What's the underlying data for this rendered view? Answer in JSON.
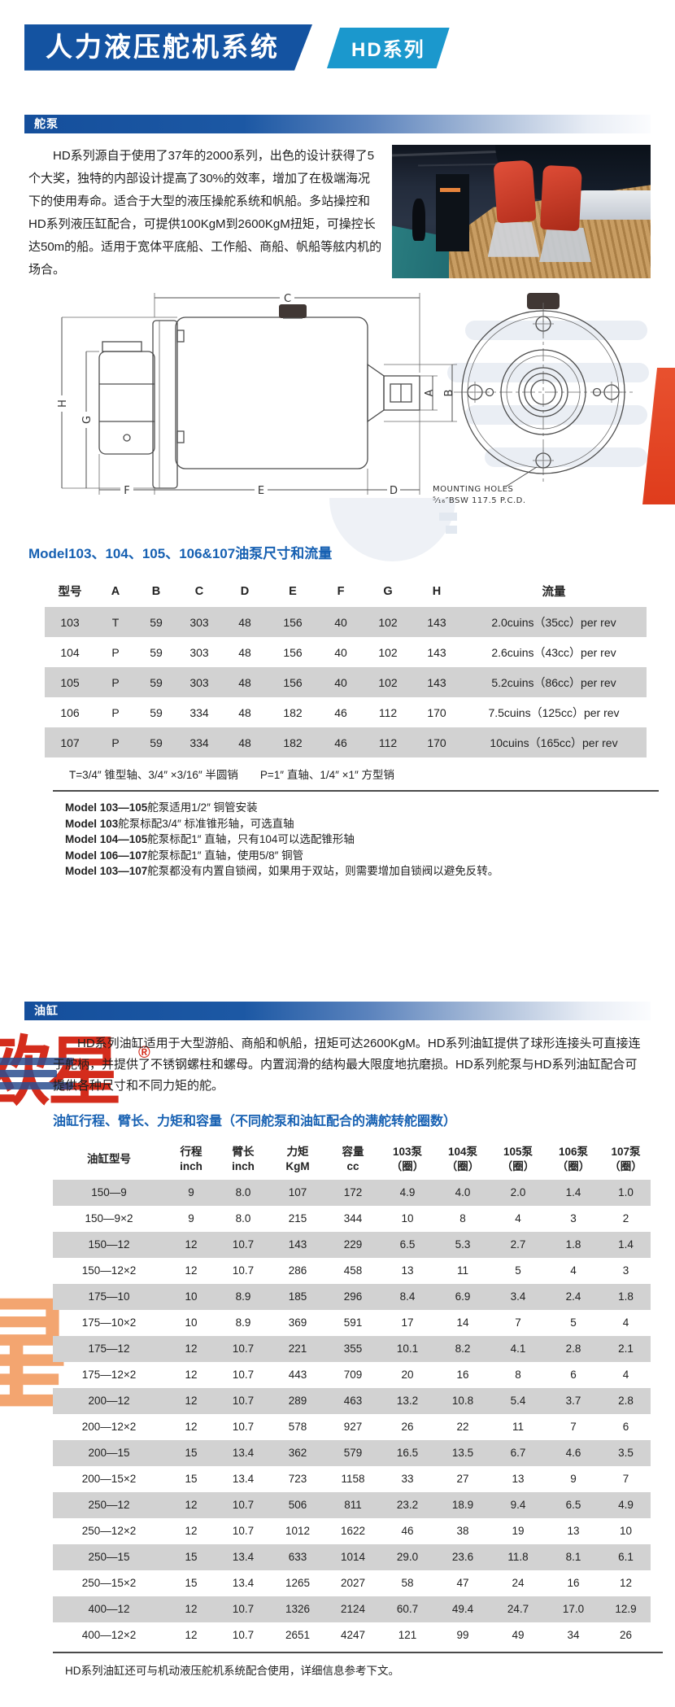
{
  "header": {
    "title": "人力液压舵机系统",
    "badge": "HD系列"
  },
  "pump_section": {
    "heading": "舵泵",
    "description": "HD系列源自于使用了37年的2000系列，出色的设计获得了5个大奖，独特的内部设计提高了30%的效率，增加了在极端海况下的使用寿命。适合于大型的液压操舵系统和帆船。多站操控和HD系列液压缸配合，可提供100KgM到2600KgM扭矩，可操控长达50m的船。适用于宽体平底船、工作船、商船、帆船等舷内机的场合。",
    "drawing": {
      "dim_c": "C",
      "dim_h": "H",
      "dim_g": "G",
      "dim_a": "A",
      "dim_b": "B",
      "dim_f": "F",
      "dim_e": "E",
      "dim_d": "D",
      "mounting_line1": "MOUNTING  HOLES",
      "mounting_line2": "⁵⁄₁₆″BSW  117.5  P.C.D."
    },
    "table_title": "Model103、104、105、106&107油泵尺寸和流量",
    "table": {
      "headers": [
        "型号",
        "A",
        "B",
        "C",
        "D",
        "E",
        "F",
        "G",
        "H",
        "流量"
      ],
      "rows": [
        [
          "103",
          "T",
          "59",
          "303",
          "48",
          "156",
          "40",
          "102",
          "143",
          "2.0cuins（35cc）per rev"
        ],
        [
          "104",
          "P",
          "59",
          "303",
          "48",
          "156",
          "40",
          "102",
          "143",
          "2.6cuins（43cc）per rev"
        ],
        [
          "105",
          "P",
          "59",
          "303",
          "48",
          "156",
          "40",
          "102",
          "143",
          "5.2cuins（86cc）per rev"
        ],
        [
          "106",
          "P",
          "59",
          "334",
          "48",
          "182",
          "46",
          "112",
          "170",
          "7.5cuins（125cc）per rev"
        ],
        [
          "107",
          "P",
          "59",
          "334",
          "48",
          "182",
          "46",
          "112",
          "170",
          "10cuins（165cc）per rev"
        ]
      ]
    },
    "shaft_note": "T=3/4″ 锥型轴、3/4″ ×3/16″ 半圆销　　P=1″ 直轴、1/4″ ×1″ 方型销",
    "notes": [
      {
        "prefix": "Model 103—105",
        "text": "舵泵适用1/2″ 铜管安装"
      },
      {
        "prefix": "Model 103",
        "text": "舵泵标配3/4″ 标准锥形轴，可选直轴"
      },
      {
        "prefix": "Model 104—105",
        "text": "舵泵标配1″ 直轴，只有104可以选配锥形轴"
      },
      {
        "prefix": "Model 106—107",
        "text": "舵泵标配1″ 直轴，使用5/8″ 铜管"
      },
      {
        "prefix": "Model 103—107",
        "text": "舵泵都没有内置自锁阀，如果用于双站，则需要增加自锁阀以避免反转。"
      }
    ]
  },
  "cylinder_section": {
    "heading": "油缸",
    "description": "HD系列油缸适用于大型游船、商船和帆船，扭矩可达2600KgM。HD系列油缸提供了球形连接头可直接连于舵柄，并提供了不锈钢螺柱和螺母。内置润滑的结构最大限度地抗磨损。HD系列舵泵与HD系列油缸配合可提供各种尺寸和不同力矩的舵。",
    "table_title": "油缸行程、臂长、力矩和容量（不同舵泵和油缸配合的满舵转舵圈数）",
    "table": {
      "headers": [
        {
          "l1": "油缸型号",
          "l2": ""
        },
        {
          "l1": "行程",
          "l2": "inch"
        },
        {
          "l1": "臂长",
          "l2": "inch"
        },
        {
          "l1": "力矩",
          "l2": "KgM"
        },
        {
          "l1": "容量",
          "l2": "cc"
        },
        {
          "l1": "103泵",
          "l2": "（圈）"
        },
        {
          "l1": "104泵",
          "l2": "（圈）"
        },
        {
          "l1": "105泵",
          "l2": "（圈）"
        },
        {
          "l1": "106泵",
          "l2": "（圈）"
        },
        {
          "l1": "107泵",
          "l2": "（圈）"
        }
      ],
      "rows": [
        [
          "150—9",
          "9",
          "8.0",
          "107",
          "172",
          "4.9",
          "4.0",
          "2.0",
          "1.4",
          "1.0"
        ],
        [
          "150—9×2",
          "9",
          "8.0",
          "215",
          "344",
          "10",
          "8",
          "4",
          "3",
          "2"
        ],
        [
          "150—12",
          "12",
          "10.7",
          "143",
          "229",
          "6.5",
          "5.3",
          "2.7",
          "1.8",
          "1.4"
        ],
        [
          "150—12×2",
          "12",
          "10.7",
          "286",
          "458",
          "13",
          "11",
          "5",
          "4",
          "3"
        ],
        [
          "175—10",
          "10",
          "8.9",
          "185",
          "296",
          "8.4",
          "6.9",
          "3.4",
          "2.4",
          "1.8"
        ],
        [
          "175—10×2",
          "10",
          "8.9",
          "369",
          "591",
          "17",
          "14",
          "7",
          "5",
          "4"
        ],
        [
          "175—12",
          "12",
          "10.7",
          "221",
          "355",
          "10.1",
          "8.2",
          "4.1",
          "2.8",
          "2.1"
        ],
        [
          "175—12×2",
          "12",
          "10.7",
          "443",
          "709",
          "20",
          "16",
          "8",
          "6",
          "4"
        ],
        [
          "200—12",
          "12",
          "10.7",
          "289",
          "463",
          "13.2",
          "10.8",
          "5.4",
          "3.7",
          "2.8"
        ],
        [
          "200—12×2",
          "12",
          "10.7",
          "578",
          "927",
          "26",
          "22",
          "11",
          "7",
          "6"
        ],
        [
          "200—15",
          "15",
          "13.4",
          "362",
          "579",
          "16.5",
          "13.5",
          "6.7",
          "4.6",
          "3.5"
        ],
        [
          "200—15×2",
          "15",
          "13.4",
          "723",
          "1158",
          "33",
          "27",
          "13",
          "9",
          "7"
        ],
        [
          "250—12",
          "12",
          "10.7",
          "506",
          "811",
          "23.2",
          "18.9",
          "9.4",
          "6.5",
          "4.9"
        ],
        [
          "250—12×2",
          "12",
          "10.7",
          "1012",
          "1622",
          "46",
          "38",
          "19",
          "13",
          "10"
        ],
        [
          "250—15",
          "15",
          "13.4",
          "633",
          "1014",
          "29.0",
          "23.6",
          "11.8",
          "8.1",
          "6.1"
        ],
        [
          "250—15×2",
          "15",
          "13.4",
          "1265",
          "2027",
          "58",
          "47",
          "24",
          "16",
          "12"
        ],
        [
          "400—12",
          "12",
          "10.7",
          "1326",
          "2124",
          "60.7",
          "49.4",
          "24.7",
          "17.0",
          "12.9"
        ],
        [
          "400—12×2",
          "12",
          "10.7",
          "2651",
          "4247",
          "121",
          "99",
          "49",
          "34",
          "26"
        ]
      ]
    },
    "footer_note": "HD系列油缸还可与机动液压舵机系统配合使用，详细信息参考下文。"
  },
  "watermarks": {
    "red_text": "欧星",
    "registered_mark": "®",
    "orange_glyph": "星"
  },
  "colors": {
    "primary_blue": "#1453a1",
    "badge_blue": "#1b98cd",
    "heading_blue": "#1660b2",
    "row_gray": "#d2d2d2",
    "watermark_red": "#d42c1c"
  }
}
